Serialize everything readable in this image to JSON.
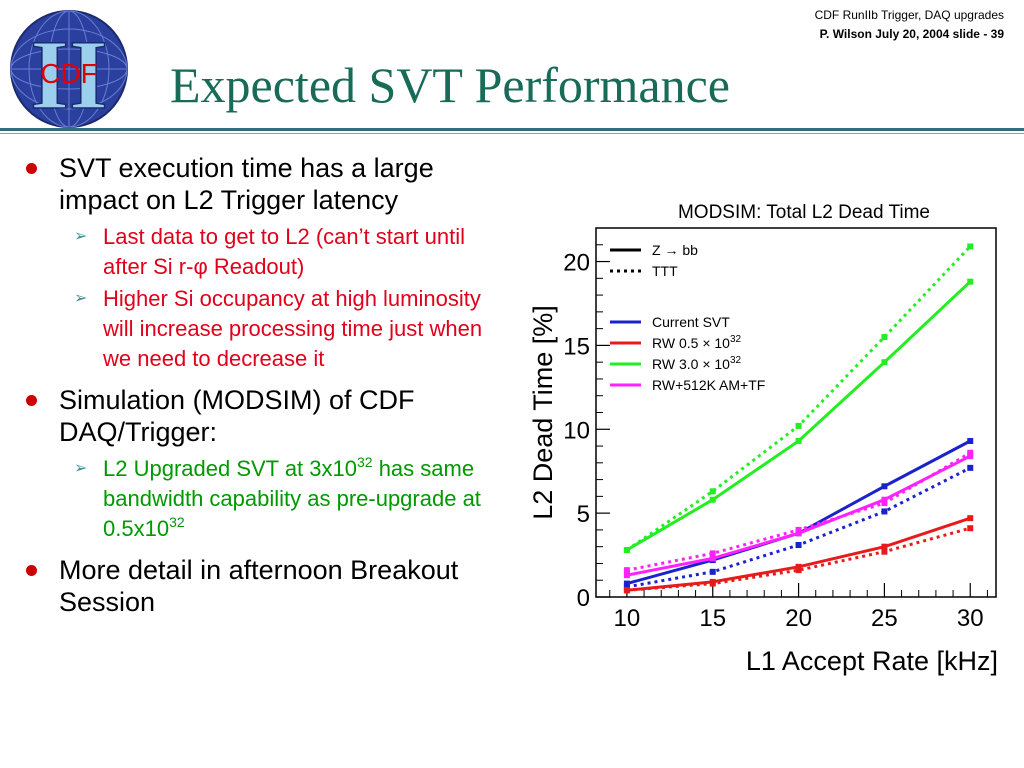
{
  "header": {
    "line1": "CDF RunIIb  Trigger, DAQ upgrades",
    "line2": "P. Wilson   July 20,  2004  slide - 39"
  },
  "logo": {
    "text": "CDF"
  },
  "title": "Expected SVT Performance",
  "bullets": [
    {
      "text": "SVT execution time has a large impact on L2 Trigger latency"
    },
    {
      "text": "Last data to get to L2 (can’t start until after Si r-φ Readout)"
    },
    {
      "text": "Higher Si occupancy at high luminosity will increase processing time just when we need to decrease it"
    },
    {
      "text": "Simulation (MODSIM) of CDF DAQ/Trigger:"
    },
    {
      "pre": "L2 Upgraded SVT at 3x10",
      "sup": "32",
      "mid": " has same bandwidth capability as pre-upgrade at 0.5x10",
      "sup2": "32"
    },
    {
      "text": "More detail in afternoon Breakout Session"
    }
  ],
  "colors": {
    "title": "#176b57",
    "bullet_dot": "#cc0000",
    "sub_red": "#e0001b",
    "sub_green": "#009900"
  },
  "chart_data": {
    "type": "line",
    "title": "MODSIM: Total L2 Dead Time",
    "xlabel": "L1 Accept Rate [kHz]",
    "ylabel": "L2 Dead Time [%]",
    "x": [
      10,
      15,
      20,
      25,
      30
    ],
    "xlim": [
      8.2,
      31.5
    ],
    "ylim": [
      0,
      22
    ],
    "yticks": [
      0,
      5,
      10,
      15,
      20
    ],
    "legend_placement": "top-left",
    "legend_style": [
      {
        "label": "Z → bb",
        "style": "solid"
      },
      {
        "label": "TTT",
        "style": "dotted"
      }
    ],
    "legend_colors": [
      {
        "label": "Current SVT",
        "color": "#1a22cc"
      },
      {
        "label": "RW 0.5 × 10",
        "sup": "32",
        "color": "#e81b1b"
      },
      {
        "label": "RW 3.0 × 10",
        "sup": "32",
        "color": "#22ee22"
      },
      {
        "label": "RW+512K AM+TF",
        "color": "#ff22ff"
      }
    ],
    "series": [
      {
        "values": [
          2.8,
          5.8,
          9.3,
          14.0,
          18.8
        ],
        "color": "#22ee22",
        "style": "solid"
      },
      {
        "values": [
          2.8,
          6.3,
          10.2,
          15.5,
          20.9
        ],
        "color": "#22ee22",
        "style": "dotted"
      },
      {
        "values": [
          0.8,
          2.2,
          3.8,
          6.6,
          9.3
        ],
        "color": "#1a22cc",
        "style": "solid"
      },
      {
        "values": [
          0.6,
          1.5,
          3.1,
          5.1,
          7.7
        ],
        "color": "#1a22cc",
        "style": "dotted"
      },
      {
        "values": [
          1.3,
          2.3,
          3.8,
          5.8,
          8.4
        ],
        "color": "#ff22ff",
        "style": "solid"
      },
      {
        "values": [
          1.6,
          2.6,
          4.0,
          5.6,
          8.6
        ],
        "color": "#ff22ff",
        "style": "dotted"
      },
      {
        "values": [
          0.4,
          0.9,
          1.8,
          3.0,
          4.7
        ],
        "color": "#e81b1b",
        "style": "solid"
      },
      {
        "values": [
          0.4,
          0.8,
          1.6,
          2.7,
          4.1
        ],
        "color": "#e81b1b",
        "style": "dotted"
      }
    ]
  }
}
